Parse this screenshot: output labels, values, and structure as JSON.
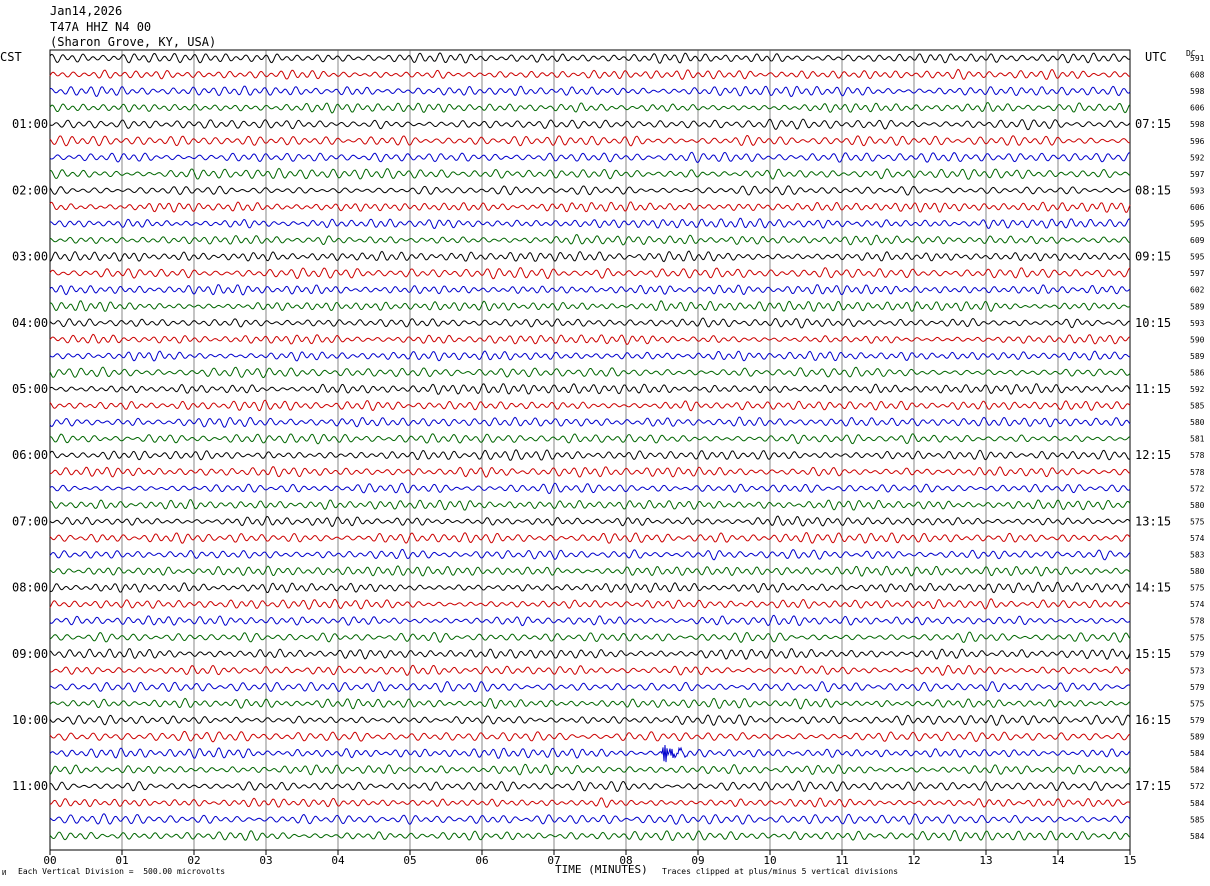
{
  "header": {
    "date": "Jan14,2026",
    "station": "T47A HHZ N4 00",
    "location": "(Sharon Grove, KY, USA)"
  },
  "labels": {
    "left_tz": "CST",
    "right_tz": "UTC",
    "dc_header": "DC",
    "xlabel": "TIME (MINUTES)",
    "scale_note": "Each Vertical Division =  500.00 microvolts",
    "clip_note": "Traces clipped at plus/minus 5 vertical divisions",
    "corner_mark": "И"
  },
  "chart_data": {
    "type": "line",
    "xlabel": "TIME (MINUTES)",
    "xlim": [
      0,
      15
    ],
    "x_ticks": [
      "00",
      "01",
      "02",
      "03",
      "04",
      "05",
      "06",
      "07",
      "08",
      "09",
      "10",
      "11",
      "12",
      "13",
      "14",
      "15"
    ],
    "traces_per_hour": 4,
    "trace_minutes": 15,
    "trace_colors": [
      "#000000",
      "#cc0000",
      "#0000cc",
      "#006600"
    ],
    "left_hour_labels": [
      "01:00",
      "02:00",
      "03:00",
      "04:00",
      "05:00",
      "06:00",
      "07:00",
      "08:00",
      "09:00",
      "10:00",
      "11:00"
    ],
    "right_hour_labels": [
      "07:15",
      "08:15",
      "09:15",
      "10:15",
      "11:15",
      "12:15",
      "13:15",
      "14:15",
      "15:15",
      "16:15",
      "17:15"
    ],
    "dc_offsets": [
      "591",
      "608",
      "598",
      "606",
      "598",
      "596",
      "592",
      "597",
      "593",
      "606",
      "595",
      "609",
      "595",
      "597",
      "602",
      "589",
      "593",
      "590",
      "589",
      "586",
      "592",
      "585",
      "580",
      "581",
      "578",
      "578",
      "572",
      "580",
      "575",
      "574",
      "583",
      "580",
      "575",
      "574",
      "578",
      "575",
      "579",
      "573",
      "579",
      "575",
      "579",
      "589",
      "584",
      "584",
      "572",
      "584",
      "585",
      "584"
    ],
    "events": [
      {
        "trace": 42,
        "minute": 8.55,
        "description": "local event burst"
      }
    ]
  }
}
